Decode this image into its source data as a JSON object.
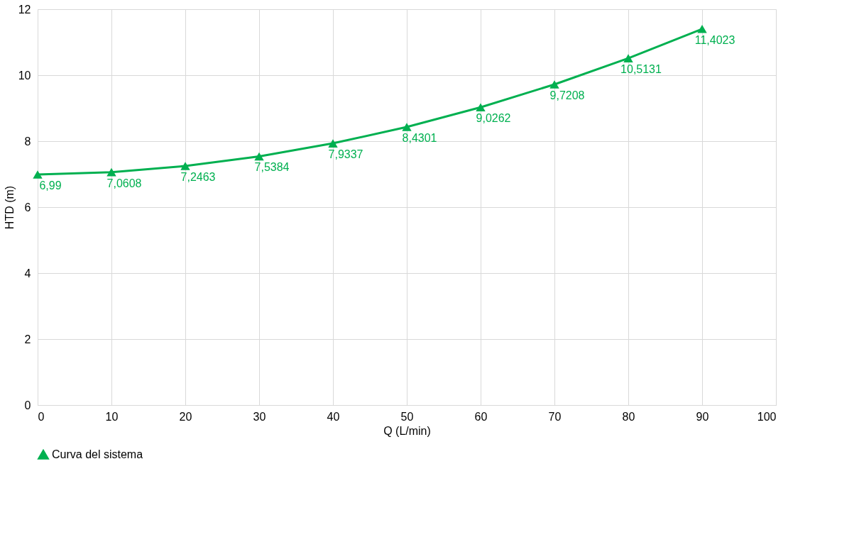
{
  "chart_data": {
    "type": "line",
    "xlabel": "Q (L/min)",
    "ylabel": "HTD (m)",
    "x": [
      0,
      10,
      20,
      30,
      40,
      50,
      60,
      70,
      80,
      90
    ],
    "series": [
      {
        "name": "Curva del sistema",
        "color": "#00b050",
        "values": [
          6.99,
          7.0608,
          7.2463,
          7.5384,
          7.9337,
          8.4301,
          9.0262,
          9.7208,
          10.5131,
          11.4023
        ],
        "value_labels": [
          "6,99",
          "7,0608",
          "7,2463",
          "7,5384",
          "7,9337",
          "8,4301",
          "9,0262",
          "9,7208",
          "10,5131",
          "11,4023"
        ]
      }
    ],
    "xlim": [
      0,
      100
    ],
    "xticks": [
      0,
      10,
      20,
      30,
      40,
      50,
      60,
      70,
      80,
      90,
      100
    ],
    "ylim": [
      0,
      12
    ],
    "yticks": [
      0,
      2,
      4,
      6,
      8,
      10,
      12
    ],
    "grid": true,
    "legend": "bottom",
    "marker": "triangle",
    "line_style": "solid"
  }
}
